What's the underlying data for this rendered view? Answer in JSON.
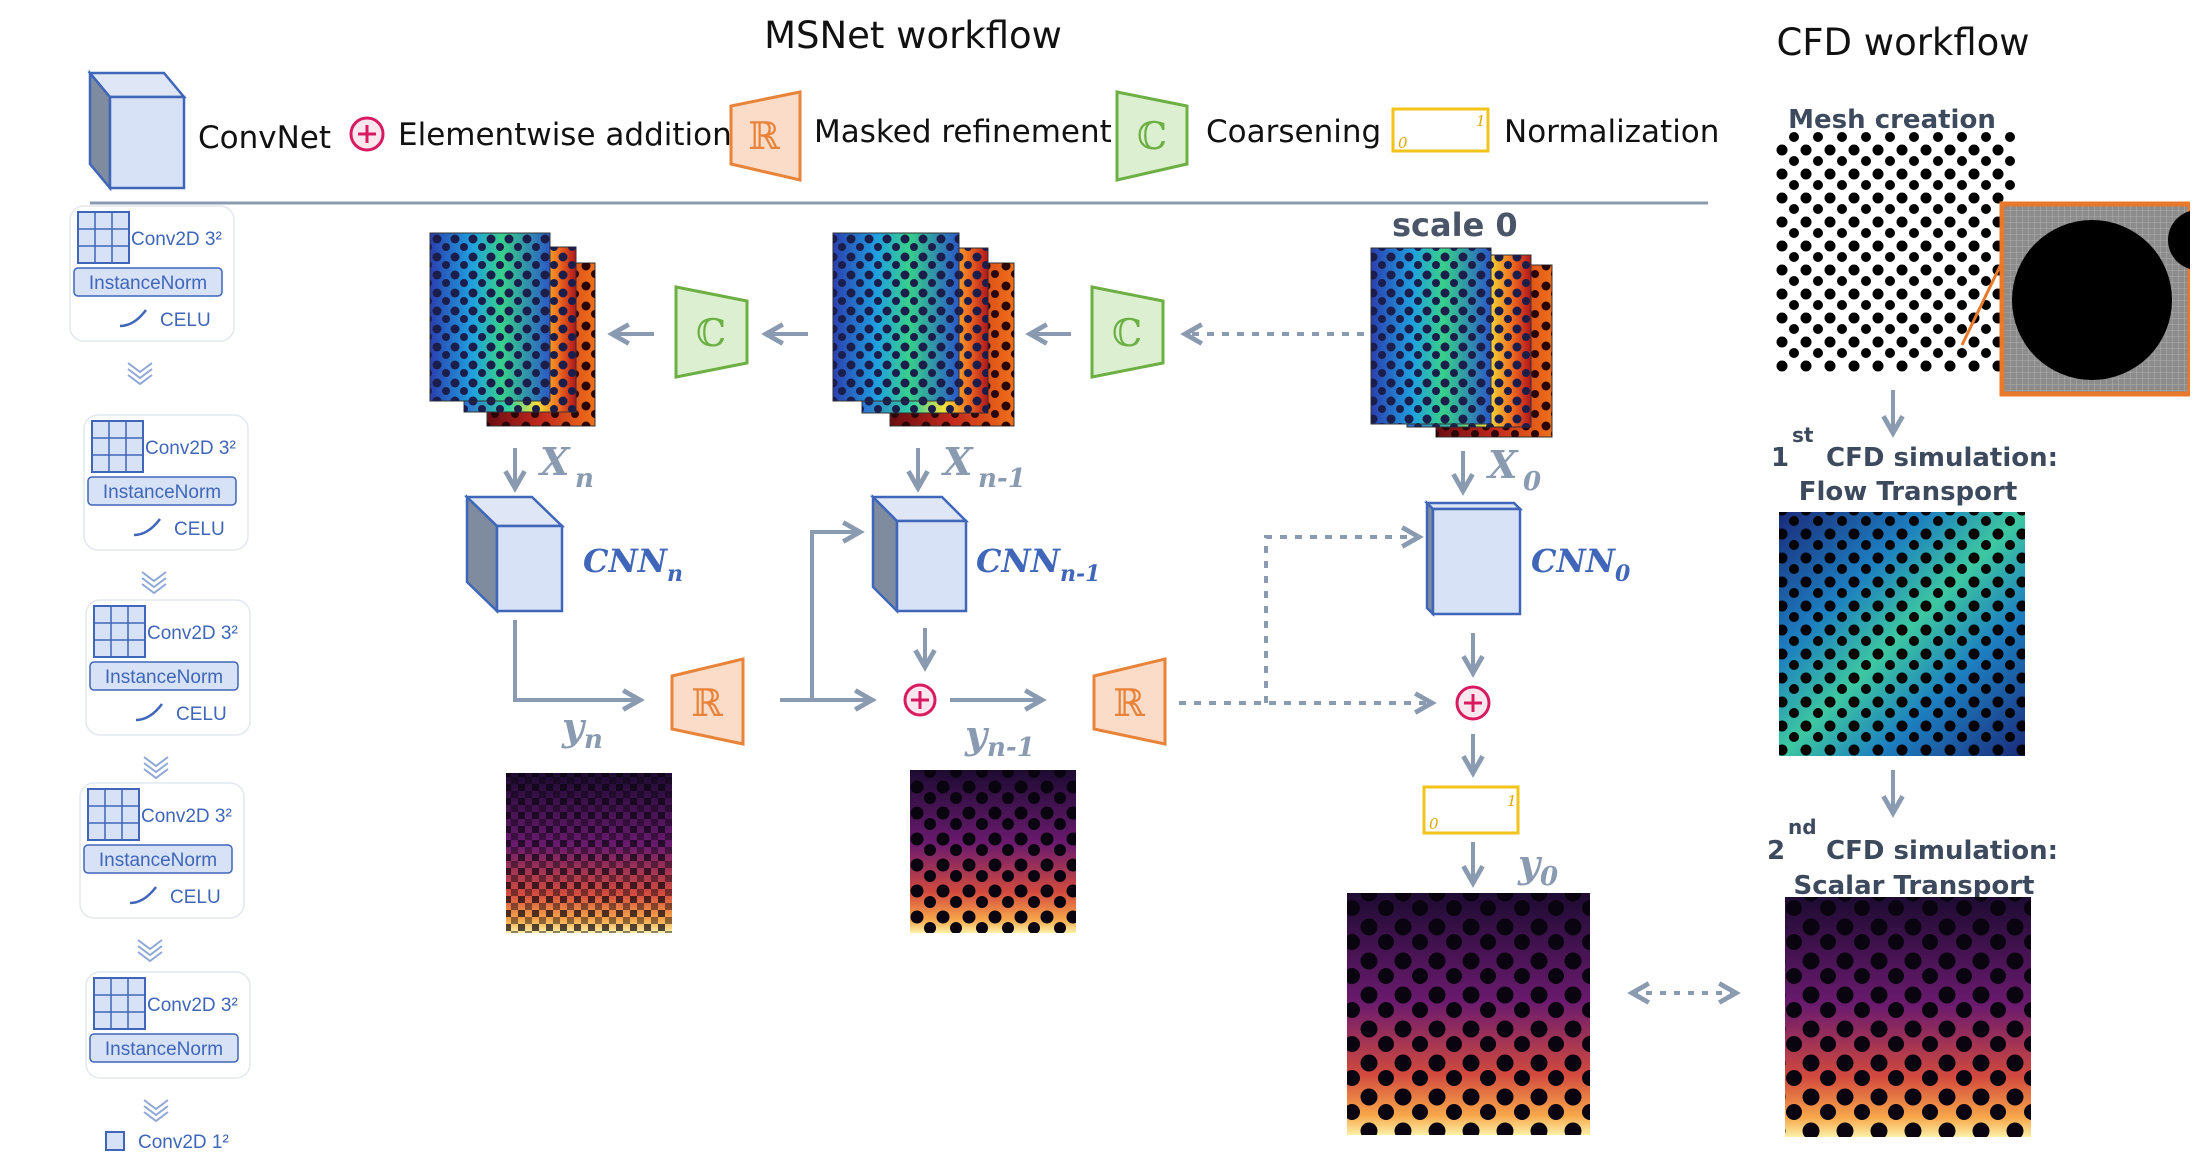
{
  "titles": {
    "msnet": "MSNet workflow",
    "cfd": "CFD workflow"
  },
  "legend": {
    "convnet": "ConvNet",
    "elementwise": "Elementwise addition",
    "masked": "Masked refinement",
    "coarsening": "Coarsening",
    "normalization": "Normalization",
    "refine_symbol": "ℝ",
    "coarsen_symbol": "ℂ",
    "norm_low": "0",
    "norm_high": "1"
  },
  "blocks": [
    {
      "conv": "Conv2D 3²",
      "norm": "InstanceNorm",
      "act": "CELU"
    },
    {
      "conv": "Conv2D 3²",
      "norm": "InstanceNorm",
      "act": "CELU"
    },
    {
      "conv": "Conv2D 3²",
      "norm": "InstanceNorm",
      "act": "CELU"
    },
    {
      "conv": "Conv2D 3²",
      "norm": "InstanceNorm",
      "act": "CELU"
    },
    {
      "conv": "Conv2D 3²",
      "norm": "InstanceNorm",
      "act": ""
    },
    {
      "conv": "Conv2D 1²",
      "norm": "",
      "act": ""
    }
  ],
  "pipeline": {
    "scale_label": "scale 0",
    "x": [
      "X",
      "X",
      "X"
    ],
    "x_sub": [
      "n",
      "n-1",
      "0"
    ],
    "cnn": [
      "CNN",
      "CNN",
      "CNN"
    ],
    "cnn_sub": [
      "n",
      "n-1",
      "0"
    ],
    "y": [
      "y",
      "y",
      "y"
    ],
    "y_sub": [
      "n",
      "n-1",
      "0"
    ]
  },
  "cfd_workflow": {
    "mesh": "Mesh creation",
    "sim1_num": "1",
    "sim1_sup": "st",
    "sim1_line1": "CFD simulation:",
    "sim1_line2": "Flow Transport",
    "sim2_num": "2",
    "sim2_sup": "nd",
    "sim2_line1": "CFD simulation:",
    "sim2_line2": "Scalar Transport"
  },
  "colors": {
    "arrow": "#8a9bb1",
    "cube": "#3f66b8",
    "refine": "#e8833a",
    "coarsen": "#6cb043",
    "plus": "#d81b60",
    "norm": "#f2c318",
    "zoom": "#e8792b"
  }
}
